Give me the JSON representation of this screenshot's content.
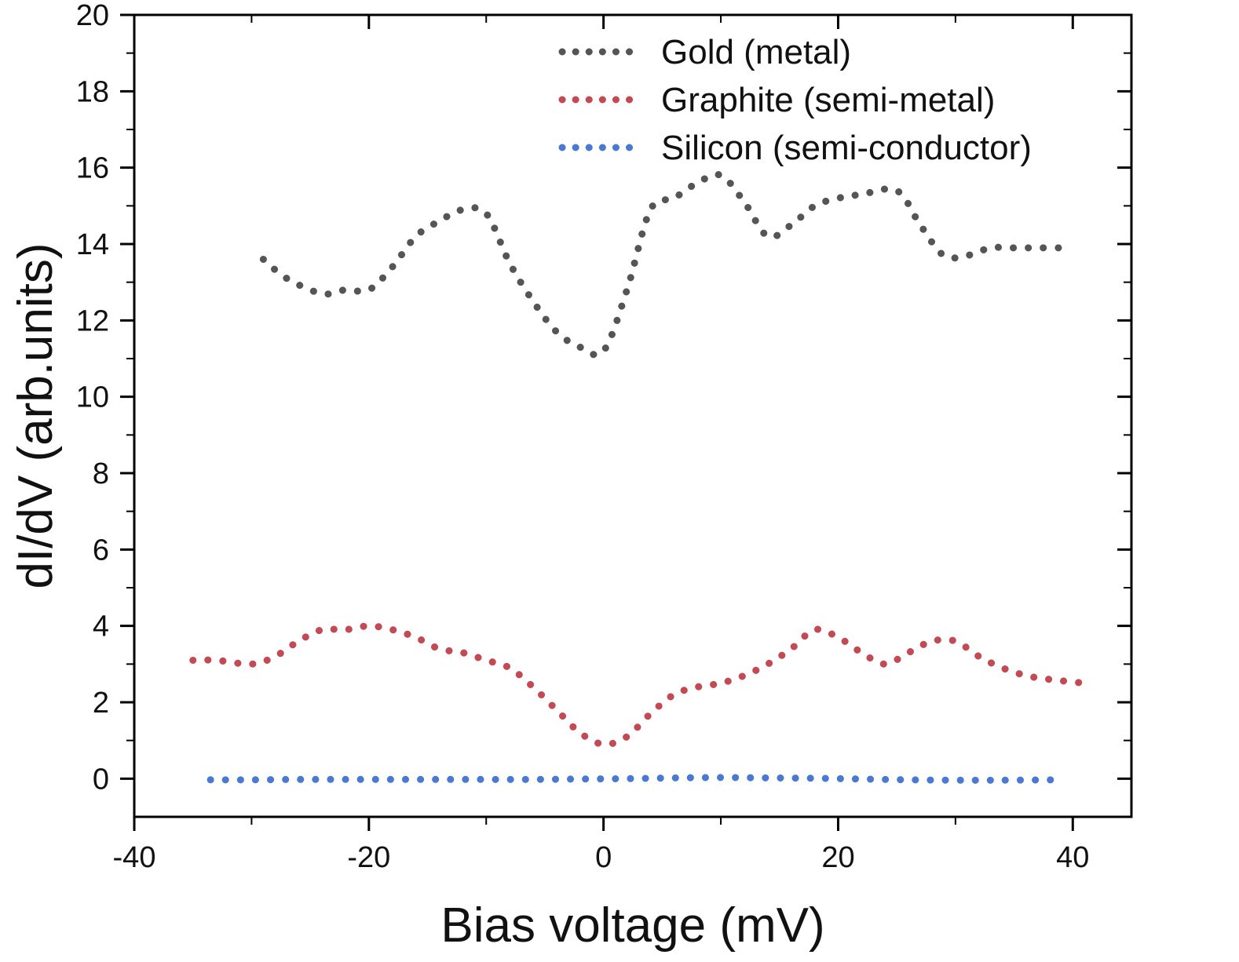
{
  "chart_data": {
    "type": "line",
    "title": "",
    "xlabel": "Bias voltage (mV)",
    "ylabel": "dI/dV (arb.units)",
    "xlim": [
      -40,
      45
    ],
    "ylim": [
      -1,
      20
    ],
    "x_ticks": [
      "-40",
      "-20",
      "0",
      "20",
      "40"
    ],
    "y_ticks": [
      "0",
      "2",
      "4",
      "6",
      "8",
      "10",
      "12",
      "14",
      "16",
      "18",
      "20"
    ],
    "grid": false,
    "legend_position": "top-right",
    "line_style": "dotted",
    "series": [
      {
        "name": "Gold (metal)",
        "color": "#555555",
        "x": [
          -29,
          -27,
          -24,
          -22,
          -20,
          -18,
          -16,
          -14,
          -12,
          -10,
          -8,
          -6,
          -4,
          -2,
          0,
          2,
          4,
          6,
          8,
          10,
          12,
          14,
          16,
          18,
          20,
          22,
          25,
          27,
          29,
          31,
          33,
          35,
          37,
          39
        ],
        "y": [
          13.6,
          13.1,
          12.7,
          12.8,
          12.8,
          13.4,
          14.2,
          14.6,
          14.9,
          14.8,
          13.5,
          12.5,
          11.7,
          11.3,
          11.2,
          12.8,
          14.9,
          15.2,
          15.6,
          15.8,
          15.1,
          14.2,
          14.5,
          15.0,
          15.2,
          15.3,
          15.4,
          14.5,
          13.7,
          13.7,
          13.9,
          13.9,
          13.9,
          13.9
        ]
      },
      {
        "name": "Graphite (semi-metal)",
        "color": "#c24a55",
        "x": [
          -35,
          -33,
          -30,
          -28,
          -26,
          -24,
          -22,
          -20,
          -18,
          -16,
          -14,
          -12,
          -10,
          -8,
          -6,
          -4,
          -2,
          0,
          2,
          4,
          6,
          8,
          10,
          12,
          14,
          16,
          18,
          20,
          22,
          24,
          26,
          28,
          30,
          32,
          34,
          36,
          38,
          41
        ],
        "y": [
          3.1,
          3.1,
          3.0,
          3.2,
          3.6,
          3.9,
          3.9,
          4.0,
          3.9,
          3.7,
          3.4,
          3.3,
          3.1,
          2.9,
          2.4,
          1.8,
          1.2,
          0.9,
          1.1,
          1.7,
          2.2,
          2.4,
          2.5,
          2.7,
          3.0,
          3.4,
          3.9,
          3.7,
          3.3,
          3.0,
          3.3,
          3.6,
          3.6,
          3.2,
          2.9,
          2.7,
          2.6,
          2.5
        ]
      },
      {
        "name": "Silicon (semi-conductor)",
        "color": "#4a79d2",
        "x": [
          -33.5,
          -30,
          -26,
          -22,
          -18,
          -14,
          -10,
          -6,
          -2,
          2,
          6,
          10,
          14,
          18,
          22,
          26,
          30,
          34,
          39
        ],
        "y": [
          -0.03,
          -0.03,
          -0.02,
          -0.02,
          -0.02,
          -0.02,
          -0.02,
          -0.02,
          -0.01,
          0.0,
          0.02,
          0.03,
          0.02,
          0.01,
          -0.01,
          -0.03,
          -0.04,
          -0.04,
          -0.03
        ]
      }
    ]
  }
}
